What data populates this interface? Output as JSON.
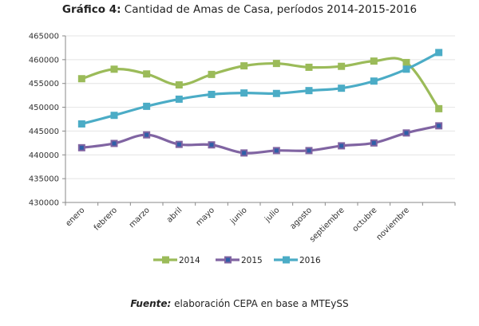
{
  "title": {
    "bold": "Gráfico 4:",
    "text": " Cantidad de Amas de Casa, períodos 2014-2015-2016"
  },
  "footer": {
    "bold": "Fuente:",
    "text": " elaboración CEPA en base a MTEySS"
  },
  "chart_data": {
    "type": "line",
    "title": "Gráfico 4: Cantidad de Amas de Casa, períodos 2014-2015-2016",
    "xlabel": "",
    "ylabel": "",
    "categories": [
      "enero",
      "febrero",
      "marzo",
      "abril",
      "mayo",
      "junio",
      "julio",
      "agosto",
      "septiembre",
      "octubre",
      "noviembre",
      ""
    ],
    "ylim": [
      430000,
      465000
    ],
    "yticks": [
      430000,
      435000,
      440000,
      445000,
      450000,
      455000,
      460000,
      465000
    ],
    "grid": true,
    "legend_position": "bottom",
    "series": [
      {
        "name": "2014",
        "color": "#9BBB59",
        "values": [
          456000,
          458000,
          457000,
          454700,
          456900,
          458700,
          459200,
          458400,
          458600,
          459700,
          459400,
          449700
        ]
      },
      {
        "name": "2015",
        "color": "#8064A2",
        "marker_color": "#2E5FA8",
        "values": [
          441500,
          442400,
          444200,
          442200,
          442100,
          440400,
          440900,
          440900,
          441900,
          442500,
          444600,
          446100
        ]
      },
      {
        "name": "2016",
        "color": "#4BACC6",
        "values": [
          446500,
          448300,
          450200,
          451700,
          452700,
          453000,
          452900,
          453500,
          454000,
          455500,
          458000,
          461500
        ]
      }
    ]
  }
}
